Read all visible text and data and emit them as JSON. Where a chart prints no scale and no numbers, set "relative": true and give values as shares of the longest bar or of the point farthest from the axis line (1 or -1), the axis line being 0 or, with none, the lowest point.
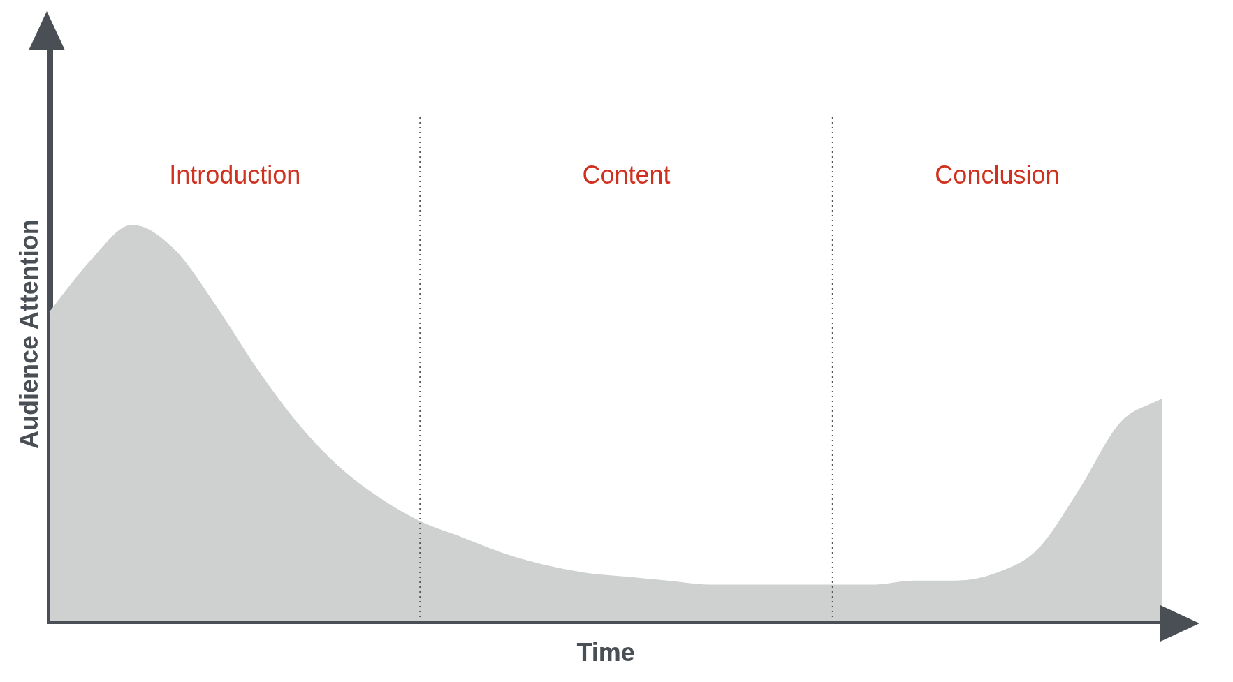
{
  "chart_data": {
    "type": "area",
    "relative": true,
    "xlabel": "Time",
    "ylabel": "Audience Attention",
    "categories": [
      null,
      null,
      null,
      null,
      null,
      null,
      null,
      null,
      null,
      null,
      null,
      null,
      null,
      null,
      null,
      null,
      null,
      null,
      null,
      null,
      null,
      null,
      null,
      null,
      null,
      null,
      null,
      null
    ],
    "series": [
      {
        "color": "#cfd1d1",
        "values": [
          0.78,
          0.91,
          1.0,
          0.94,
          0.8,
          0.64,
          0.5,
          0.39,
          0.31,
          0.25,
          0.21,
          0.17,
          0.14,
          0.12,
          0.11,
          0.1,
          0.09,
          0.09,
          0.09,
          0.09,
          0.09,
          0.1,
          0.1,
          0.12,
          0.18,
          0.33,
          0.5,
          0.56
        ]
      }
    ],
    "annotations": [
      "Introduction",
      "Content",
      "Conclusion"
    ],
    "grid": false,
    "legend": false
  }
}
